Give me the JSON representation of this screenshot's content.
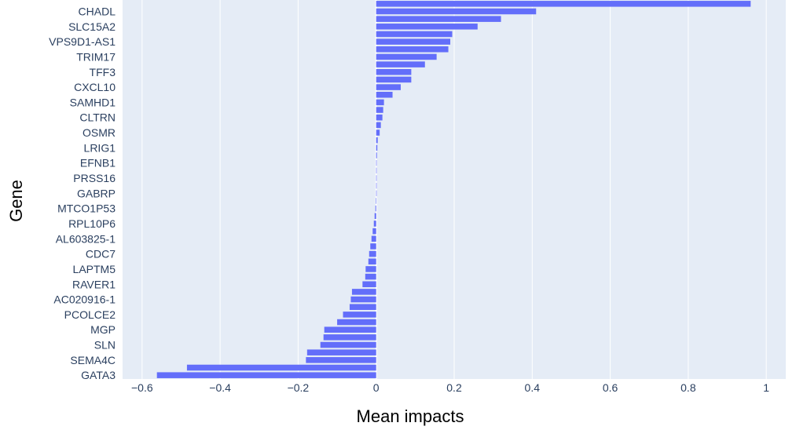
{
  "chart_data": {
    "type": "bar",
    "orientation": "horizontal",
    "xlabel": "Mean impacts",
    "ylabel": "Gene",
    "xlim": [
      -0.65,
      1.05
    ],
    "xticks": [
      -0.6,
      -0.4,
      -0.2,
      0,
      0.2,
      0.4,
      0.6,
      0.8,
      1
    ],
    "xtick_labels": [
      "−0.6",
      "−0.4",
      "−0.2",
      "0",
      "0.2",
      "0.4",
      "0.6",
      "0.8",
      "1"
    ],
    "grid": true,
    "categories": [
      "",
      "CHADL",
      "",
      "SLC15A2",
      "",
      "VPS9D1-AS1",
      "",
      "TRIM17",
      "",
      "TFF3",
      "",
      "CXCL10",
      "",
      "SAMHD1",
      "",
      "CLTRN",
      "",
      "OSMR",
      "",
      "LRIG1",
      "",
      "EFNB1",
      "",
      "PRSS16",
      "",
      "GABRP",
      "",
      "MTCO1P53",
      "",
      "RPL10P6",
      "",
      "AL603825-1",
      "",
      "CDC7",
      "",
      "LAPTM5",
      "",
      "RAVER1",
      "",
      "AC020916-1",
      "",
      "PCOLCE2",
      "",
      "MGP",
      "",
      "SLN",
      "",
      "SEMA4C",
      "",
      "GATA3"
    ],
    "values": [
      0.96,
      0.41,
      0.32,
      0.26,
      0.195,
      0.19,
      0.185,
      0.155,
      0.125,
      0.09,
      0.09,
      0.063,
      0.042,
      0.02,
      0.018,
      0.016,
      0.012,
      0.009,
      0.004,
      0.003,
      0.002,
      0.001,
      0.001,
      0.001,
      0.0005,
      0.0005,
      -0.001,
      -0.002,
      -0.004,
      -0.006,
      -0.009,
      -0.012,
      -0.015,
      -0.018,
      -0.02,
      -0.027,
      -0.028,
      -0.035,
      -0.062,
      -0.065,
      -0.068,
      -0.085,
      -0.1,
      -0.133,
      -0.135,
      -0.143,
      -0.177,
      -0.18,
      -0.485,
      -0.562
    ],
    "colors": {
      "bar": "#636efa",
      "plot_bg": "#e5ecf6",
      "grid": "#ffffff",
      "tick_text": "#2a3f5f",
      "title_text": "#000000"
    }
  }
}
